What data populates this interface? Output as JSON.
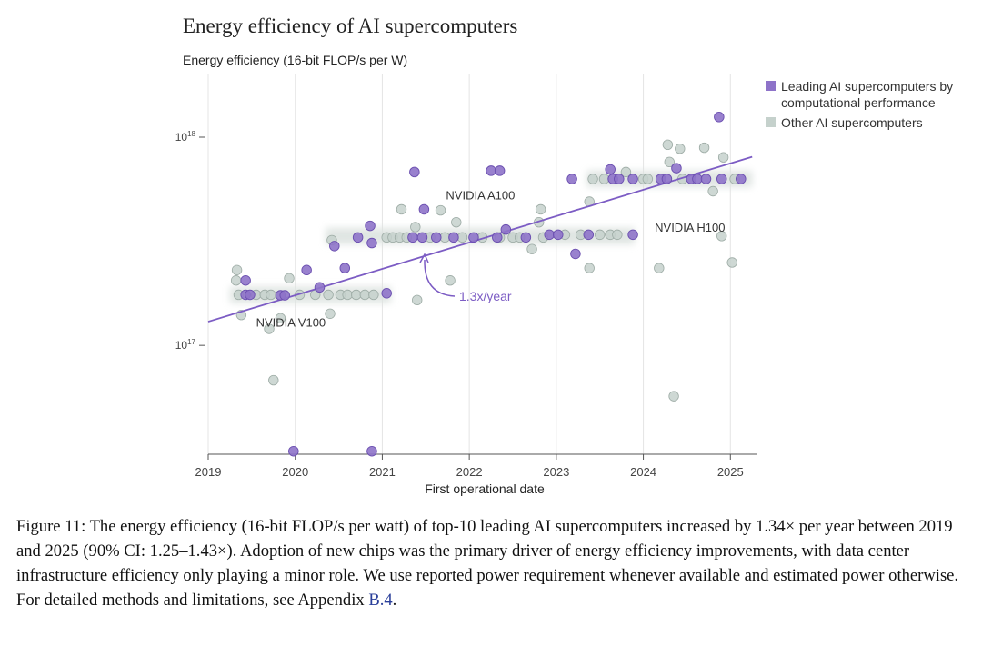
{
  "figure": {
    "title": "Energy efficiency of AI supercomputers",
    "caption": {
      "text_before": "Figure 11: The energy efficiency (16-bit FLOP/s per watt) of top-10 leading AI supercomputers increased by 1.34× per year between 2019 and 2025 (90% CI: 1.25–1.43×). Adoption of new chips was the primary driver of energy efficiency improvements, with data center infrastructure efficiency only playing a minor role. We use reported power requirement whenever available and estimated power otherwise. For detailed methods and limitations, see Appendix ",
      "ref": "B.4",
      "text_after": "."
    }
  },
  "chart_data": {
    "type": "scatter",
    "title": "Energy efficiency of AI supercomputers",
    "ylabel": "Energy efficiency (16-bit FLOP/s per W)",
    "xlabel": "First operational date",
    "y_scale": "log",
    "xlim": [
      2019,
      2025.3
    ],
    "ylim": [
      3e+16,
      2e+18
    ],
    "x_ticks": [
      {
        "value": 2019,
        "label": "2019"
      },
      {
        "value": 2020,
        "label": "2020"
      },
      {
        "value": 2021,
        "label": "2021"
      },
      {
        "value": 2022,
        "label": "2022"
      },
      {
        "value": 2023,
        "label": "2023"
      },
      {
        "value": 2024,
        "label": "2024"
      },
      {
        "value": 2025,
        "label": "2025"
      }
    ],
    "y_ticks": [
      {
        "value": 1e+17,
        "base": "10",
        "exp": "17"
      },
      {
        "value": 1e+18,
        "base": "10",
        "exp": "18"
      }
    ],
    "grid": "vertical",
    "legend_position": "top-right",
    "colors": {
      "leading": "#8e73c9",
      "leading_edge": "#6b4fb0",
      "other": "#c5d1cc",
      "other_edge": "#9eaca6",
      "trend": "#7c5cc4",
      "band": "#dde3e0"
    },
    "series": [
      {
        "name": "Leading AI supercomputers by computational performance",
        "points": [
          {
            "x": 2019.43,
            "y": 2.05e+17
          },
          {
            "x": 2019.43,
            "y": 1.75e+17
          },
          {
            "x": 2019.48,
            "y": 1.75e+17
          },
          {
            "x": 2019.83,
            "y": 1.74e+17
          },
          {
            "x": 2019.88,
            "y": 1.74e+17
          },
          {
            "x": 2020.13,
            "y": 2.3e+17
          },
          {
            "x": 2020.28,
            "y": 1.9e+17
          },
          {
            "x": 2020.45,
            "y": 3e+17
          },
          {
            "x": 2020.57,
            "y": 2.35e+17
          },
          {
            "x": 2020.72,
            "y": 3.3e+17
          },
          {
            "x": 2020.86,
            "y": 3.75e+17
          },
          {
            "x": 2020.88,
            "y": 3.1e+17
          },
          {
            "x": 2021.05,
            "y": 1.78e+17
          },
          {
            "x": 2021.37,
            "y": 6.8e+17
          },
          {
            "x": 2021.35,
            "y": 3.3e+17
          },
          {
            "x": 2021.46,
            "y": 3.3e+17
          },
          {
            "x": 2021.48,
            "y": 4.5e+17
          },
          {
            "x": 2021.62,
            "y": 3.3e+17
          },
          {
            "x": 2021.82,
            "y": 3.3e+17
          },
          {
            "x": 2022.05,
            "y": 3.3e+17
          },
          {
            "x": 2022.25,
            "y": 6.9e+17
          },
          {
            "x": 2022.35,
            "y": 6.9e+17
          },
          {
            "x": 2022.32,
            "y": 3.3e+17
          },
          {
            "x": 2022.42,
            "y": 3.6e+17
          },
          {
            "x": 2022.65,
            "y": 3.3e+17
          },
          {
            "x": 2022.92,
            "y": 3.4e+17
          },
          {
            "x": 2023.02,
            "y": 3.4e+17
          },
          {
            "x": 2023.18,
            "y": 6.3e+17
          },
          {
            "x": 2023.22,
            "y": 2.75e+17
          },
          {
            "x": 2023.37,
            "y": 3.4e+17
          },
          {
            "x": 2023.62,
            "y": 7e+17
          },
          {
            "x": 2023.65,
            "y": 6.3e+17
          },
          {
            "x": 2023.72,
            "y": 6.3e+17
          },
          {
            "x": 2023.88,
            "y": 3.4e+17
          },
          {
            "x": 2023.88,
            "y": 6.3e+17
          },
          {
            "x": 2024.2,
            "y": 6.3e+17
          },
          {
            "x": 2024.27,
            "y": 6.3e+17
          },
          {
            "x": 2024.55,
            "y": 6.3e+17
          },
          {
            "x": 2024.38,
            "y": 7.1e+17
          },
          {
            "x": 2024.62,
            "y": 6.3e+17
          },
          {
            "x": 2024.72,
            "y": 6.3e+17
          },
          {
            "x": 2024.87,
            "y": 1.25e+18
          },
          {
            "x": 2024.9,
            "y": 6.3e+17
          },
          {
            "x": 2025.12,
            "y": 6.3e+17
          },
          {
            "x": 2019.98,
            "y": 3.1e+16
          },
          {
            "x": 2020.88,
            "y": 3.1e+16
          }
        ]
      },
      {
        "name": "Other AI supercomputers",
        "points": [
          {
            "x": 2019.32,
            "y": 2.05e+17
          },
          {
            "x": 2019.33,
            "y": 2.3e+17
          },
          {
            "x": 2019.38,
            "y": 1.4e+17
          },
          {
            "x": 2019.35,
            "y": 1.75e+17
          },
          {
            "x": 2019.55,
            "y": 1.75e+17
          },
          {
            "x": 2019.65,
            "y": 1.75e+17
          },
          {
            "x": 2019.72,
            "y": 1.75e+17
          },
          {
            "x": 2019.7,
            "y": 1.2e+17
          },
          {
            "x": 2019.75,
            "y": 6.8e+16
          },
          {
            "x": 2019.83,
            "y": 1.35e+17
          },
          {
            "x": 2019.93,
            "y": 2.1e+17
          },
          {
            "x": 2020.05,
            "y": 1.75e+17
          },
          {
            "x": 2020.23,
            "y": 1.75e+17
          },
          {
            "x": 2020.38,
            "y": 1.75e+17
          },
          {
            "x": 2020.4,
            "y": 1.42e+17
          },
          {
            "x": 2020.42,
            "y": 3.2e+17
          },
          {
            "x": 2020.52,
            "y": 1.75e+17
          },
          {
            "x": 2020.6,
            "y": 1.75e+17
          },
          {
            "x": 2020.7,
            "y": 1.75e+17
          },
          {
            "x": 2020.8,
            "y": 1.75e+17
          },
          {
            "x": 2020.9,
            "y": 1.75e+17
          },
          {
            "x": 2021.05,
            "y": 3.3e+17
          },
          {
            "x": 2021.12,
            "y": 3.3e+17
          },
          {
            "x": 2021.2,
            "y": 3.3e+17
          },
          {
            "x": 2021.22,
            "y": 4.5e+17
          },
          {
            "x": 2021.28,
            "y": 3.3e+17
          },
          {
            "x": 2021.38,
            "y": 3.7e+17
          },
          {
            "x": 2021.4,
            "y": 1.65e+17
          },
          {
            "x": 2021.55,
            "y": 3.3e+17
          },
          {
            "x": 2021.67,
            "y": 4.45e+17
          },
          {
            "x": 2021.72,
            "y": 3.3e+17
          },
          {
            "x": 2021.78,
            "y": 2.05e+17
          },
          {
            "x": 2021.85,
            "y": 3.9e+17
          },
          {
            "x": 2021.92,
            "y": 3.3e+17
          },
          {
            "x": 2022.15,
            "y": 3.3e+17
          },
          {
            "x": 2022.35,
            "y": 3.3e+17
          },
          {
            "x": 2022.5,
            "y": 3.3e+17
          },
          {
            "x": 2022.58,
            "y": 3.3e+17
          },
          {
            "x": 2022.72,
            "y": 2.9e+17
          },
          {
            "x": 2022.82,
            "y": 4.5e+17
          },
          {
            "x": 2022.8,
            "y": 3.9e+17
          },
          {
            "x": 2022.85,
            "y": 3.3e+17
          },
          {
            "x": 2023.1,
            "y": 3.4e+17
          },
          {
            "x": 2023.28,
            "y": 3.4e+17
          },
          {
            "x": 2023.38,
            "y": 2.35e+17
          },
          {
            "x": 2023.38,
            "y": 4.9e+17
          },
          {
            "x": 2023.42,
            "y": 6.3e+17
          },
          {
            "x": 2023.5,
            "y": 3.4e+17
          },
          {
            "x": 2023.55,
            "y": 6.3e+17
          },
          {
            "x": 2023.62,
            "y": 3.4e+17
          },
          {
            "x": 2023.7,
            "y": 3.4e+17
          },
          {
            "x": 2023.8,
            "y": 6.8e+17
          },
          {
            "x": 2024.0,
            "y": 6.3e+17
          },
          {
            "x": 2024.05,
            "y": 6.3e+17
          },
          {
            "x": 2024.18,
            "y": 2.35e+17
          },
          {
            "x": 2024.28,
            "y": 9.2e+17
          },
          {
            "x": 2024.3,
            "y": 7.6e+17
          },
          {
            "x": 2024.35,
            "y": 5.7e+16
          },
          {
            "x": 2024.42,
            "y": 8.8e+17
          },
          {
            "x": 2024.45,
            "y": 6.3e+17
          },
          {
            "x": 2024.7,
            "y": 8.9e+17
          },
          {
            "x": 2024.8,
            "y": 5.5e+17
          },
          {
            "x": 2024.9,
            "y": 3.35e+17
          },
          {
            "x": 2024.92,
            "y": 8e+17
          },
          {
            "x": 2025.02,
            "y": 2.5e+17
          },
          {
            "x": 2025.05,
            "y": 6.3e+17
          }
        ]
      }
    ],
    "trend": {
      "label": "1.3x/year",
      "start": {
        "x": 2019,
        "y": 1.3e+17
      },
      "end": {
        "x": 2025.25,
        "y": 8.05e+17
      }
    },
    "annotations": [
      {
        "label": "NVIDIA V100",
        "x": 2019.8,
        "y": 1.75e+17
      },
      {
        "label": "NVIDIA A100",
        "x": 2021.0,
        "y": 3.3e+17
      },
      {
        "label": "NVIDIA H100",
        "x": 2023.4,
        "y": 6.3e+17
      }
    ],
    "bands": [
      {
        "x_start": 2019.25,
        "x_end": 2021.1,
        "y": 1.75e+17
      },
      {
        "x_start": 2020.35,
        "x_end": 2023.9,
        "y": 3.35e+17
      },
      {
        "x_start": 2023.35,
        "x_end": 2025.25,
        "y": 6.3e+17
      }
    ]
  }
}
